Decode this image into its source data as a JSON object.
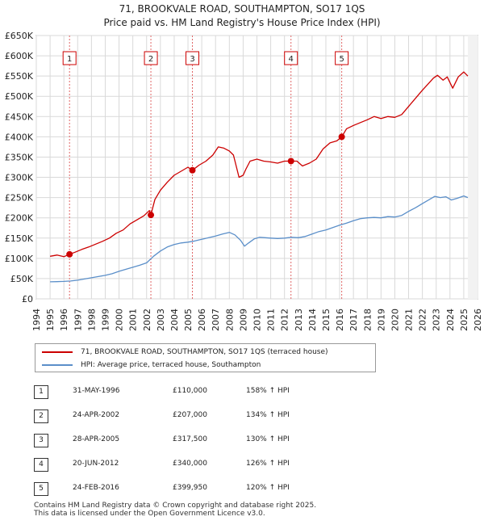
{
  "title_line1": "71, BROOKVALE ROAD, SOUTHAMPTON, SO17 1QS",
  "title_line2": "Price paid vs. HM Land Registry's House Price Index (HPI)",
  "legend": {
    "property": "71, BROOKVALE ROAD, SOUTHAMPTON, SO17 1QS (terraced house)",
    "hpi": "HPI: Average price, terraced house, Southampton"
  },
  "colors": {
    "property": "#cc0000",
    "hpi": "#5b8fc9",
    "grid": "#d9d9d9",
    "plot_bg": "#ffffff",
    "marker_line": "#e06666"
  },
  "transactions": [
    {
      "id": "1",
      "date": "31-MAY-1996",
      "price": "£110,000",
      "hpi": "158% ↑ HPI",
      "t": 1996.41,
      "value": 110000
    },
    {
      "id": "2",
      "date": "24-APR-2002",
      "price": "£207,000",
      "hpi": "134% ↑ HPI",
      "t": 2002.31,
      "value": 207000
    },
    {
      "id": "3",
      "date": "28-APR-2005",
      "price": "£317,500",
      "hpi": "130% ↑ HPI",
      "t": 2005.32,
      "value": 317500
    },
    {
      "id": "4",
      "date": "20-JUN-2012",
      "price": "£340,000",
      "hpi": "126% ↑ HPI",
      "t": 2012.47,
      "value": 340000
    },
    {
      "id": "5",
      "date": "24-FEB-2016",
      "price": "£399,950",
      "hpi": "120% ↑ HPI",
      "t": 2016.15,
      "value": 399950
    }
  ],
  "footer": {
    "line1": "Contains HM Land Registry data © Crown copyright and database right 2025.",
    "line2": "This data is licensed under the Open Government Licence v3.0."
  },
  "chart_data": {
    "type": "line",
    "title": "71, BROOKVALE ROAD, SOUTHAMPTON, SO17 1QS — Price paid vs. HM Land Registry's House Price Index (HPI)",
    "xlabel": "",
    "ylabel": "",
    "xlim": [
      1994,
      2026
    ],
    "ylim": [
      0,
      650000
    ],
    "x_ticks": [
      1994,
      1995,
      1996,
      1997,
      1998,
      1999,
      2000,
      2001,
      2002,
      2003,
      2004,
      2005,
      2006,
      2007,
      2008,
      2009,
      2010,
      2011,
      2012,
      2013,
      2014,
      2015,
      2016,
      2017,
      2018,
      2019,
      2020,
      2021,
      2022,
      2023,
      2024,
      2025,
      2026
    ],
    "y_ticks": [
      0,
      50000,
      100000,
      150000,
      200000,
      250000,
      300000,
      350000,
      400000,
      450000,
      500000,
      550000,
      600000,
      650000
    ],
    "y_tick_labels": [
      "£0",
      "£50K",
      "£100K",
      "£150K",
      "£200K",
      "£250K",
      "£300K",
      "£350K",
      "£400K",
      "£450K",
      "£500K",
      "£550K",
      "£600K",
      "£650K"
    ],
    "grid": true,
    "legend_position": "bottom",
    "series": [
      {
        "name": "71, BROOKVALE ROAD, SOUTHAMPTON, SO17 1QS (terraced house)",
        "x": [
          1995.0,
          1995.5,
          1996.0,
          1996.41,
          1996.8,
          1997.3,
          1997.8,
          1998.3,
          1998.8,
          1999.3,
          1999.8,
          2000.3,
          2000.8,
          2001.3,
          2001.8,
          2002.2,
          2002.31,
          2002.6,
          2003.0,
          2003.5,
          2004.0,
          2004.5,
          2005.0,
          2005.32,
          2005.8,
          2006.3,
          2006.8,
          2007.2,
          2007.6,
          2008.0,
          2008.3,
          2008.7,
          2009.0,
          2009.2,
          2009.5,
          2010.0,
          2010.5,
          2011.0,
          2011.5,
          2012.0,
          2012.47,
          2012.9,
          2013.3,
          2013.8,
          2014.3,
          2014.8,
          2015.3,
          2015.8,
          2016.15,
          2016.5,
          2017.0,
          2017.5,
          2018.0,
          2018.5,
          2019.0,
          2019.5,
          2020.0,
          2020.5,
          2021.0,
          2021.5,
          2022.0,
          2022.4,
          2022.8,
          2023.1,
          2023.5,
          2023.8,
          2024.2,
          2024.6,
          2025.0,
          2025.3
        ],
        "values": [
          105000,
          108000,
          104000,
          110000,
          115000,
          122000,
          128000,
          135000,
          142000,
          150000,
          162000,
          170000,
          185000,
          195000,
          205000,
          218000,
          207000,
          245000,
          268000,
          288000,
          305000,
          315000,
          325000,
          317500,
          330000,
          340000,
          355000,
          375000,
          372000,
          365000,
          355000,
          300000,
          305000,
          320000,
          340000,
          345000,
          340000,
          338000,
          335000,
          340000,
          340000,
          340000,
          328000,
          335000,
          345000,
          370000,
          385000,
          390000,
          399950,
          420000,
          428000,
          435000,
          442000,
          450000,
          445000,
          450000,
          448000,
          455000,
          475000,
          495000,
          515000,
          530000,
          545000,
          552000,
          540000,
          548000,
          520000,
          548000,
          560000,
          550000
        ]
      },
      {
        "name": "HPI: Average price, terraced house, Southampton",
        "x": [
          1995.0,
          1995.5,
          1996.0,
          1996.5,
          1997.0,
          1997.5,
          1998.0,
          1998.5,
          1999.0,
          1999.5,
          2000.0,
          2000.5,
          2001.0,
          2001.5,
          2002.0,
          2002.5,
          2003.0,
          2003.5,
          2004.0,
          2004.5,
          2005.0,
          2005.5,
          2006.0,
          2006.5,
          2007.0,
          2007.5,
          2008.0,
          2008.4,
          2008.8,
          2009.1,
          2009.4,
          2009.8,
          2010.2,
          2010.6,
          2011.0,
          2011.5,
          2012.0,
          2012.5,
          2013.0,
          2013.5,
          2014.0,
          2014.5,
          2015.0,
          2015.5,
          2016.0,
          2016.5,
          2017.0,
          2017.5,
          2018.0,
          2018.5,
          2019.0,
          2019.5,
          2020.0,
          2020.5,
          2021.0,
          2021.5,
          2022.0,
          2022.5,
          2022.9,
          2023.3,
          2023.7,
          2024.1,
          2024.5,
          2025.0,
          2025.3
        ],
        "values": [
          42000,
          42500,
          43000,
          44000,
          46000,
          49000,
          52000,
          55000,
          58000,
          62000,
          68000,
          73000,
          78000,
          83000,
          89000,
          105000,
          118000,
          128000,
          134000,
          138000,
          140000,
          143000,
          147000,
          151000,
          155000,
          160000,
          164000,
          158000,
          145000,
          130000,
          138000,
          148000,
          152000,
          151000,
          150000,
          149000,
          150000,
          152000,
          151000,
          154000,
          160000,
          166000,
          170000,
          176000,
          182000,
          187000,
          193000,
          198000,
          200000,
          201000,
          200000,
          203000,
          202000,
          206000,
          216000,
          225000,
          235000,
          245000,
          253000,
          250000,
          252000,
          244000,
          248000,
          254000,
          250000
        ]
      }
    ],
    "annotations": [
      {
        "label": "1",
        "x": 1996.41,
        "y": 110000
      },
      {
        "label": "2",
        "x": 2002.31,
        "y": 207000
      },
      {
        "label": "3",
        "x": 2005.32,
        "y": 317500
      },
      {
        "label": "4",
        "x": 2012.47,
        "y": 340000
      },
      {
        "label": "5",
        "x": 2016.15,
        "y": 399950
      }
    ]
  }
}
